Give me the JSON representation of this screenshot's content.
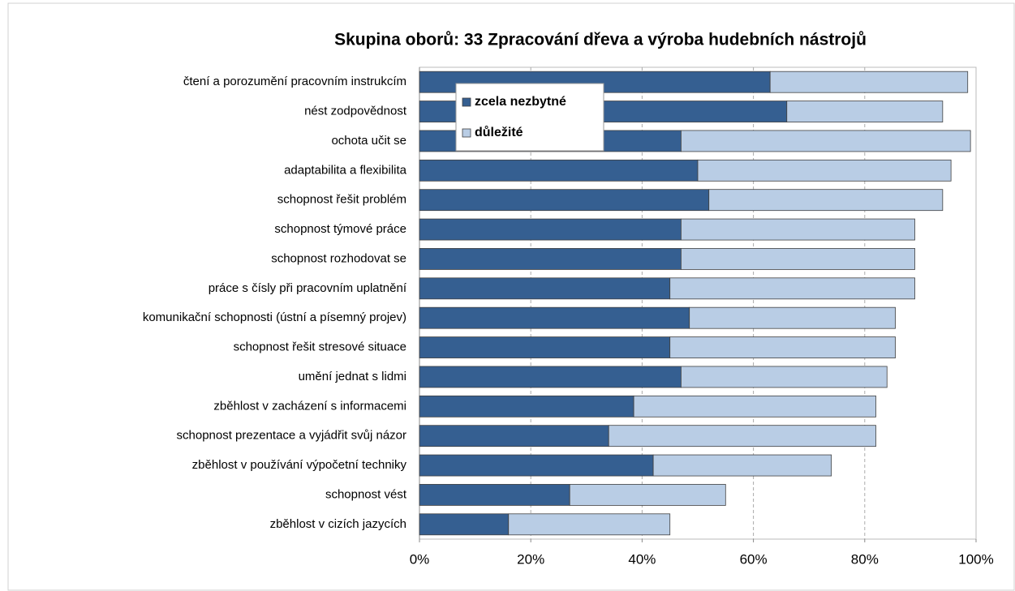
{
  "chart_data": {
    "type": "stacked-barh",
    "title": "Skupina oborů: 33 Zpracování dřeva a výroba hudebních nástrojů",
    "categories": [
      "čtení a porozumění pracovním instrukcím",
      "nést zodpovědnost",
      "ochota učit se",
      "adaptabilita a flexibilita",
      "schopnost řešit problém",
      "schopnost týmové práce",
      "schopnost rozhodovat se",
      "práce s čísly při pracovním uplatnění",
      "komunikační schopnosti (ústní a písemný projev)",
      "schopnost řešit stresové situace",
      "umění jednat s lidmi",
      "zběhlost v zacházení s informacemi",
      "schopnost prezentace a vyjádřit svůj názor",
      "zběhlost v používání výpočetní techniky",
      "schopnost vést",
      "zběhlost v cizích jazycích"
    ],
    "series": [
      {
        "name": "zcela nezbytné",
        "color": "#355f91",
        "values": [
          63,
          66,
          47,
          50,
          52,
          47,
          47,
          45,
          48.5,
          45,
          47,
          38.5,
          34,
          42,
          27,
          16
        ]
      },
      {
        "name": "důležité",
        "color": "#b9cde5",
        "values": [
          35.5,
          28,
          52,
          45.5,
          42,
          42,
          42,
          44,
          37,
          40.5,
          37,
          43.5,
          48,
          32,
          28,
          29
        ]
      }
    ],
    "xlim": [
      0,
      100
    ],
    "xticks": [
      {
        "value": 0,
        "label": "0%"
      },
      {
        "value": 20,
        "label": "20%"
      },
      {
        "value": 40,
        "label": "40%"
      },
      {
        "value": 60,
        "label": "60%"
      },
      {
        "value": 80,
        "label": "80%"
      },
      {
        "value": 100,
        "label": "100%"
      }
    ],
    "grid": true,
    "legend": "upper-left"
  }
}
